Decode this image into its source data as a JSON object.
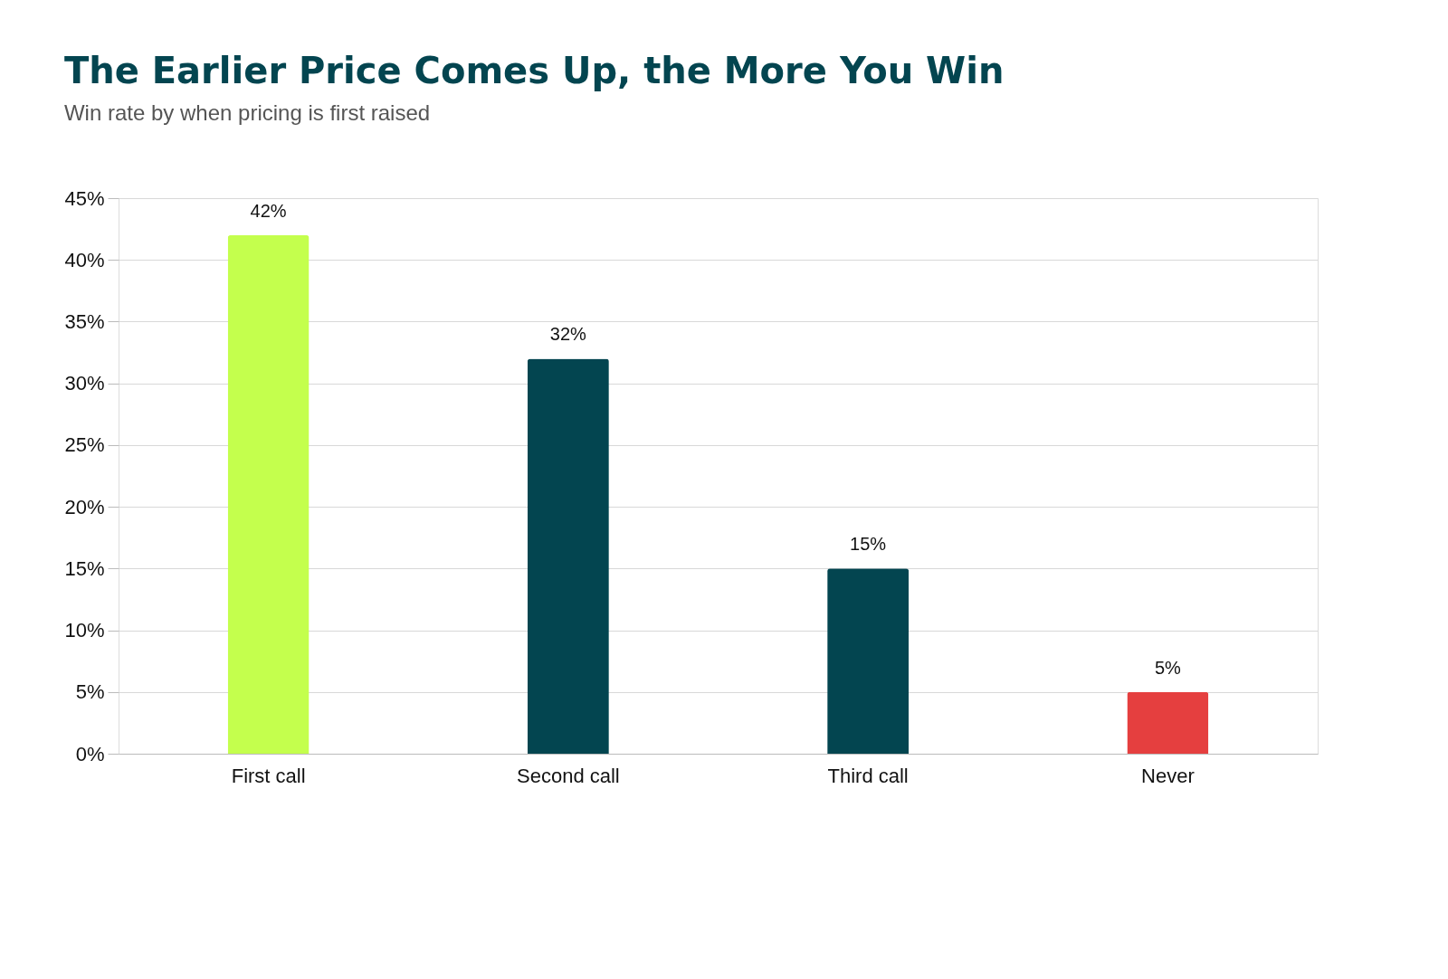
{
  "chart_data": {
    "type": "bar",
    "title": "The Earlier Price Comes Up, the More You Win",
    "subtitle": "Win rate by when pricing is first raised",
    "categories": [
      "First call",
      "Second call",
      "Third call",
      "Never"
    ],
    "values": [
      42,
      32,
      15,
      5
    ],
    "value_labels": [
      "42%",
      "32%",
      "15%",
      "5%"
    ],
    "colors": [
      "#c4ff4d",
      "#034550",
      "#034550",
      "#e53f3f"
    ],
    "ylim": [
      0,
      45
    ],
    "yticks": [
      {
        "value": 0,
        "label": "0%"
      },
      {
        "value": 5,
        "label": "5%"
      },
      {
        "value": 10,
        "label": "10%"
      },
      {
        "value": 15,
        "label": "15%"
      },
      {
        "value": 20,
        "label": "20%"
      },
      {
        "value": 25,
        "label": "25%"
      },
      {
        "value": 30,
        "label": "30%"
      },
      {
        "value": 35,
        "label": "35%"
      },
      {
        "value": 40,
        "label": "40%"
      },
      {
        "value": 45,
        "label": "45%"
      }
    ],
    "grid": "y",
    "legend": false
  }
}
